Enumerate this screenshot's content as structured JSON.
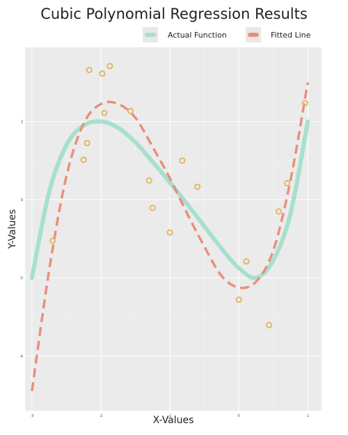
{
  "chart_data": {
    "type": "line",
    "title": "Cubic Polynomial Regression Results",
    "xlabel": "X-Values",
    "ylabel": "Y-Values",
    "xlim": [
      -3.1,
      1.2
    ],
    "ylim": [
      -5.4,
      3.9
    ],
    "x_ticks": [
      -3,
      -2,
      -1,
      0,
      1
    ],
    "y_ticks": [
      -4,
      -2,
      0,
      2
    ],
    "x_tick_labels": [
      "-3",
      "-2",
      "-1",
      "0",
      "1"
    ],
    "y_tick_labels": [
      "-4",
      "-2",
      "0",
      "2"
    ],
    "grid": true,
    "legend_position": "top-right",
    "series": [
      {
        "name": "Actual Function",
        "kind": "curve",
        "style": "solid",
        "color": "#a7e0cc",
        "x": [
          -3.0,
          -2.75,
          -2.5,
          -2.25,
          -2.0,
          -1.75,
          -1.5,
          -1.25,
          -1.0,
          -0.75,
          -0.5,
          -0.25,
          0.0,
          0.25,
          0.5,
          0.75,
          1.0
        ],
        "y": [
          -2.0,
          0.2,
          1.4,
          1.9,
          2.0,
          1.84,
          1.47,
          0.97,
          0.44,
          -0.11,
          -0.68,
          -1.25,
          -1.75,
          -2.0,
          -1.55,
          -0.35,
          2.0
        ]
      },
      {
        "name": "Fitted Line",
        "kind": "curve",
        "style": "dashed",
        "color": "#e8907a",
        "x": [
          -3.0,
          -2.75,
          -2.5,
          -2.25,
          -2.0,
          -1.75,
          -1.5,
          -1.25,
          -1.0,
          -0.75,
          -0.5,
          -0.25,
          0.0,
          0.25,
          0.5,
          0.75,
          1.0
        ],
        "y": [
          -4.9,
          -1.8,
          0.6,
          1.95,
          2.45,
          2.45,
          2.1,
          1.35,
          0.55,
          -0.35,
          -1.2,
          -1.95,
          -2.25,
          -2.1,
          -1.3,
          0.5,
          3.0
        ]
      },
      {
        "name": "Data Points",
        "kind": "points",
        "color": "#e3b766",
        "x": [
          -2.7,
          -2.25,
          -2.2,
          -2.17,
          -1.95,
          -1.98,
          -1.87,
          -1.57,
          -1.3,
          -1.25,
          -1.0,
          -0.82,
          -0.6,
          0.0,
          0.11,
          0.44,
          0.58,
          0.7,
          0.96
        ],
        "y": [
          -1.05,
          1.02,
          1.45,
          3.32,
          2.22,
          3.23,
          3.42,
          2.27,
          0.49,
          -0.21,
          -0.84,
          1.0,
          0.33,
          -2.56,
          -1.58,
          -3.21,
          -0.3,
          0.42,
          2.47
        ]
      }
    ]
  }
}
